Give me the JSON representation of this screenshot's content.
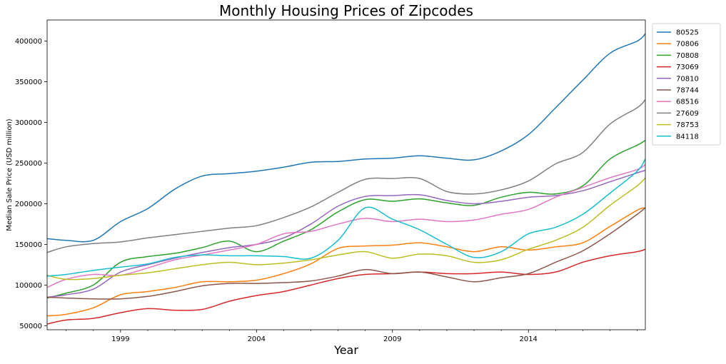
{
  "chart_data": {
    "type": "line",
    "title": "Monthly Housing Prices of Zipcodes",
    "xlabel": "Year",
    "ylabel": "Median Sale Price (USD million)",
    "xlim": [
      1996.3,
      2018.3
    ],
    "ylim": [
      45000,
      426000
    ],
    "x_ticks": [
      1999,
      2004,
      2009,
      2014
    ],
    "x_tick_labels": [
      "1999",
      "2004",
      "2009",
      "2014"
    ],
    "y_ticks": [
      50000,
      100000,
      150000,
      200000,
      250000,
      300000,
      350000,
      400000
    ],
    "y_tick_labels": [
      "50000",
      "100000",
      "150000",
      "200000",
      "250000",
      "300000",
      "350000",
      "400000"
    ],
    "grid": false,
    "legend_position": "outside-right",
    "x": [
      1996.3,
      1997,
      1998,
      1999,
      2000,
      2001,
      2002,
      2003,
      2004,
      2005,
      2006,
      2007,
      2008,
      2009,
      2010,
      2011,
      2012,
      2013,
      2014,
      2015,
      2016,
      2017,
      2018,
      2018.3
    ],
    "series": [
      {
        "name": "80525",
        "color": "#1f77b4",
        "values": [
          157000,
          155000,
          155000,
          178000,
          194000,
          218000,
          234000,
          237000,
          240000,
          245000,
          251000,
          252000,
          255000,
          256000,
          259000,
          256000,
          254000,
          265000,
          285000,
          318000,
          352000,
          385000,
          400000,
          409000
        ]
      },
      {
        "name": "70806",
        "color": "#ff7f0e",
        "values": [
          62000,
          64000,
          72000,
          88000,
          92000,
          97000,
          104000,
          104000,
          106000,
          114000,
          126000,
          145000,
          148000,
          149000,
          152000,
          147000,
          141000,
          147000,
          143000,
          147000,
          152000,
          172000,
          192000,
          195000
        ]
      },
      {
        "name": "70808",
        "color": "#2ca02c",
        "values": [
          84000,
          90000,
          100000,
          128000,
          135000,
          139000,
          146000,
          154000,
          141000,
          154000,
          168000,
          190000,
          205000,
          203000,
          206000,
          201000,
          198000,
          208000,
          214000,
          212000,
          222000,
          255000,
          272000,
          278000
        ]
      },
      {
        "name": "73069",
        "color": "#d62728",
        "values": [
          52000,
          57000,
          59000,
          66000,
          71000,
          69000,
          70000,
          80000,
          87000,
          92000,
          100000,
          108000,
          113000,
          114000,
          116000,
          114000,
          114000,
          116000,
          113000,
          116000,
          128000,
          136000,
          141000,
          144000
        ]
      },
      {
        "name": "70810",
        "color": "#9467bd",
        "values": [
          85000,
          88000,
          95000,
          116000,
          125000,
          133000,
          140000,
          146000,
          150000,
          158000,
          175000,
          197000,
          209000,
          210000,
          211000,
          204000,
          200000,
          203000,
          208000,
          210000,
          216000,
          227000,
          238000,
          241000
        ]
      },
      {
        "name": "78744",
        "color": "#8c564b",
        "values": [
          85000,
          84000,
          83000,
          83000,
          86000,
          92000,
          99000,
          102000,
          102000,
          103000,
          105000,
          111000,
          119000,
          114000,
          116000,
          110000,
          104000,
          109000,
          114000,
          128000,
          142000,
          163000,
          187000,
          195000
        ]
      },
      {
        "name": "68516",
        "color": "#e377c2",
        "values": [
          97000,
          107000,
          113000,
          112000,
          121000,
          131000,
          137000,
          143000,
          150000,
          163000,
          166000,
          175000,
          182000,
          178000,
          181000,
          178000,
          180000,
          187000,
          193000,
          208000,
          220000,
          232000,
          242000,
          248000
        ]
      },
      {
        "name": "27609",
        "color": "#7f7f7f",
        "values": [
          140000,
          147000,
          151000,
          153000,
          158000,
          162000,
          166000,
          170000,
          173000,
          183000,
          196000,
          214000,
          230000,
          231000,
          231000,
          215000,
          212000,
          217000,
          228000,
          249000,
          263000,
          298000,
          318000,
          328000
        ]
      },
      {
        "name": "78753",
        "color": "#bcbd22",
        "values": [
          112000,
          107000,
          108000,
          112000,
          115000,
          120000,
          125000,
          128000,
          125000,
          127000,
          131000,
          137000,
          141000,
          133000,
          138000,
          136000,
          128000,
          131000,
          144000,
          155000,
          171000,
          198000,
          222000,
          232000
        ]
      },
      {
        "name": "84118",
        "color": "#17becf",
        "values": [
          111000,
          113000,
          118000,
          122000,
          126000,
          134000,
          137000,
          136000,
          136000,
          135000,
          133000,
          155000,
          195000,
          181000,
          168000,
          150000,
          134000,
          141000,
          163000,
          171000,
          187000,
          213000,
          240000,
          255000
        ]
      }
    ]
  }
}
